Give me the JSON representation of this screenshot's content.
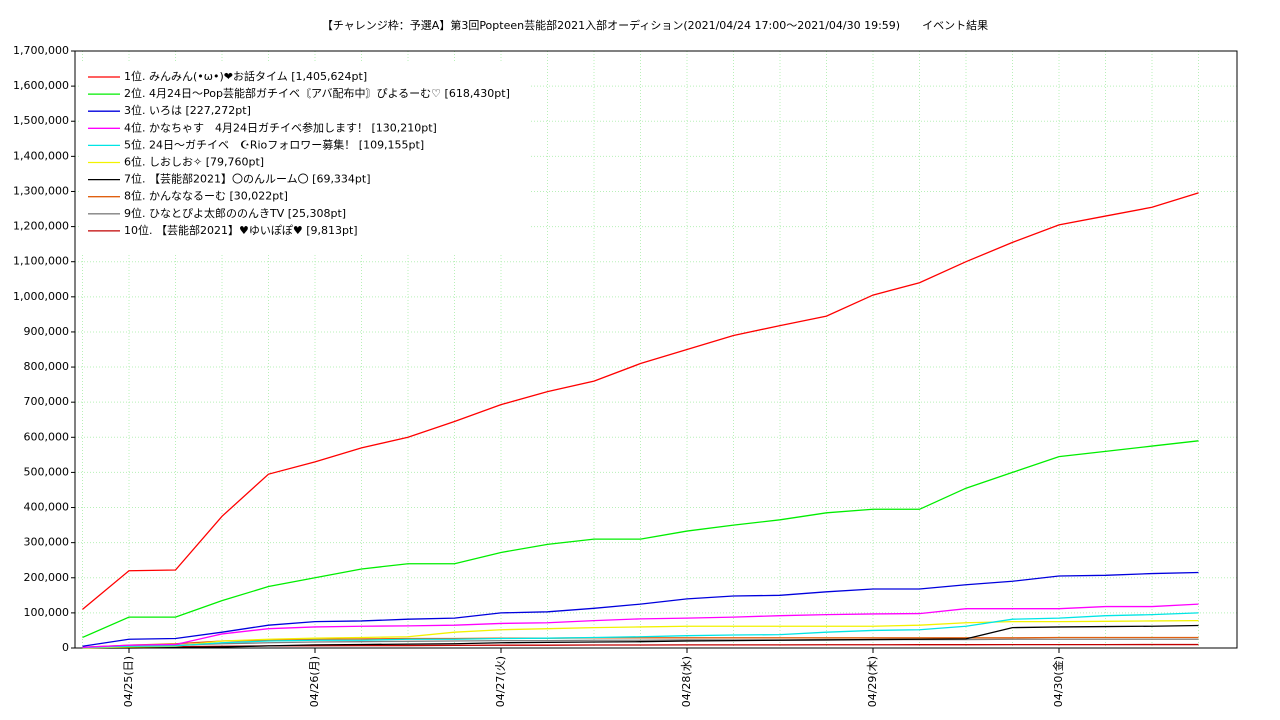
{
  "chart_data": {
    "type": "line",
    "title": "【チャレンジ枠：予選A】第3回Popteen芸能部2021入部オーディション(2021/04/24 17:00〜2021/04/30 19:59)　　イベント結果",
    "categories": [
      null,
      "04/25(日)",
      null,
      null,
      null,
      "04/26(月)",
      null,
      null,
      null,
      "04/27(火)",
      null,
      null,
      null,
      "04/28(水)",
      null,
      null,
      null,
      "04/29(木)",
      null,
      null,
      null,
      "04/30(金)",
      null,
      null,
      null
    ],
    "ylim": [
      0,
      1700000
    ],
    "yticks": [
      0,
      {
        "value": 100000,
        "label": "100,000"
      },
      {
        "value": 200000,
        "label": "200,000"
      },
      {
        "value": 300000,
        "label": "300,000"
      },
      {
        "value": 400000,
        "label": "400,000"
      },
      {
        "value": 500000,
        "label": "500,000"
      },
      {
        "value": 600000,
        "label": "600,000"
      },
      {
        "value": 700000,
        "label": "700,000"
      },
      {
        "value": 800000,
        "label": "800,000"
      },
      {
        "value": 900000,
        "label": "900,000"
      },
      {
        "value": 1000000,
        "label": "1,000,000"
      },
      {
        "value": 1100000,
        "label": "1,100,000"
      },
      {
        "value": 1200000,
        "label": "1,200,000"
      },
      {
        "value": 1300000,
        "label": "1,300,000"
      },
      {
        "value": 1400000,
        "label": "1,400,000"
      },
      {
        "value": 1500000,
        "label": "1,500,000"
      },
      {
        "value": 1600000,
        "label": "1,600,000"
      },
      {
        "value": 1700000,
        "label": "1,700,000"
      }
    ],
    "grid": true,
    "legend": "upper left",
    "series": [
      {
        "name": "1位. みんみん(•ω•)❤お話タイム [1,405,624pt]",
        "color": "#ff0000",
        "values": [
          110000,
          220000,
          222000,
          375000,
          495000,
          530000,
          570000,
          600000,
          645000,
          693000,
          730000,
          760000,
          810000,
          850000,
          890000,
          918000,
          945000,
          1005000,
          1040000,
          1100000,
          1155000,
          1205000,
          1230000,
          1255000,
          1296000
        ]
      },
      {
        "name": "2位. 4月24日〜Pop芸能部ガチイベ〘アバ配布中〙ぴよるーむ♡ [618,430pt]",
        "color": "#00ee00",
        "values": [
          30000,
          88000,
          88000,
          135000,
          175000,
          200000,
          225000,
          240000,
          240000,
          272000,
          295000,
          310000,
          310000,
          333000,
          350000,
          365000,
          385000,
          395000,
          395000,
          455000,
          500000,
          545000,
          560000,
          575000,
          590000
        ]
      },
      {
        "name": "3位. いろは [227,272pt]",
        "color": "#0000dd",
        "values": [
          5000,
          25000,
          27000,
          45000,
          65000,
          75000,
          77000,
          82000,
          85000,
          100000,
          103000,
          113000,
          125000,
          140000,
          148000,
          150000,
          160000,
          168000,
          168000,
          180000,
          190000,
          205000,
          207000,
          212000,
          215000
        ]
      },
      {
        "name": "4位. かなちゃす　4月24日ガチイベ参加します！ [130,210pt]",
        "color": "#ff00ff",
        "values": [
          2000,
          8000,
          10000,
          40000,
          55000,
          60000,
          62000,
          63000,
          65000,
          70000,
          72000,
          78000,
          83000,
          85000,
          88000,
          92000,
          95000,
          97000,
          98000,
          112000,
          112000,
          112000,
          118000,
          118000,
          125000
        ]
      },
      {
        "name": "5位. 24日〜ガチイベ　☪Rioフォロワー募集！ [109,155pt]",
        "color": "#00e5e5",
        "values": [
          1000,
          5000,
          6000,
          15000,
          20000,
          22000,
          22000,
          25000,
          25000,
          27000,
          28000,
          30000,
          32000,
          35000,
          37000,
          38000,
          45000,
          50000,
          52000,
          62000,
          82000,
          85000,
          92000,
          95000,
          100000
        ]
      },
      {
        "name": "6位. しおしお✧ [79,760pt]",
        "color": "#f2f200",
        "values": [
          0,
          3000,
          5000,
          20000,
          25000,
          28000,
          30000,
          32000,
          45000,
          52000,
          55000,
          58000,
          60000,
          62000,
          62000,
          62000,
          62000,
          62000,
          65000,
          72000,
          75000,
          75000,
          76000,
          77000,
          78000
        ]
      },
      {
        "name": "7位. 【芸能部2021】〇のんルーム〇 [69,334pt]",
        "color": "#000000",
        "values": [
          0,
          0,
          1000,
          3000,
          6000,
          9000,
          10000,
          11000,
          12000,
          15000,
          16000,
          17000,
          18000,
          20000,
          21000,
          22000,
          23000,
          24000,
          25000,
          26000,
          58000,
          60000,
          61000,
          62000,
          64000
        ]
      },
      {
        "name": "8位. かんななるーむ [30,022pt]",
        "color": "#e06010",
        "values": [
          2000,
          8000,
          12000,
          20000,
          22000,
          25000,
          26000,
          27000,
          27000,
          28000,
          28000,
          29000,
          29000,
          29000,
          29000,
          29000,
          29000,
          29000,
          29000,
          29000,
          29000,
          30000,
          30000,
          30000,
          30000
        ]
      },
      {
        "name": "9位. ひなとぴよ太郎ののんきTV [25,308pt]",
        "color": "#808080",
        "values": [
          1000,
          5000,
          8000,
          12000,
          15000,
          17000,
          18000,
          19000,
          20000,
          21000,
          21000,
          22000,
          22000,
          23000,
          23000,
          23000,
          24000,
          24000,
          24000,
          24000,
          25000,
          25000,
          25000,
          25000,
          25000
        ]
      },
      {
        "name": "10位. 【芸能部2021】♥ゆいぽぽ♥ [9,813pt]",
        "color": "#c00000",
        "values": [
          1000,
          3000,
          4000,
          5000,
          6000,
          6500,
          7000,
          7000,
          7500,
          8000,
          8000,
          8500,
          8500,
          9000,
          9000,
          9000,
          9200,
          9300,
          9400,
          9500,
          9600,
          9700,
          9700,
          9800,
          9800
        ]
      }
    ]
  }
}
